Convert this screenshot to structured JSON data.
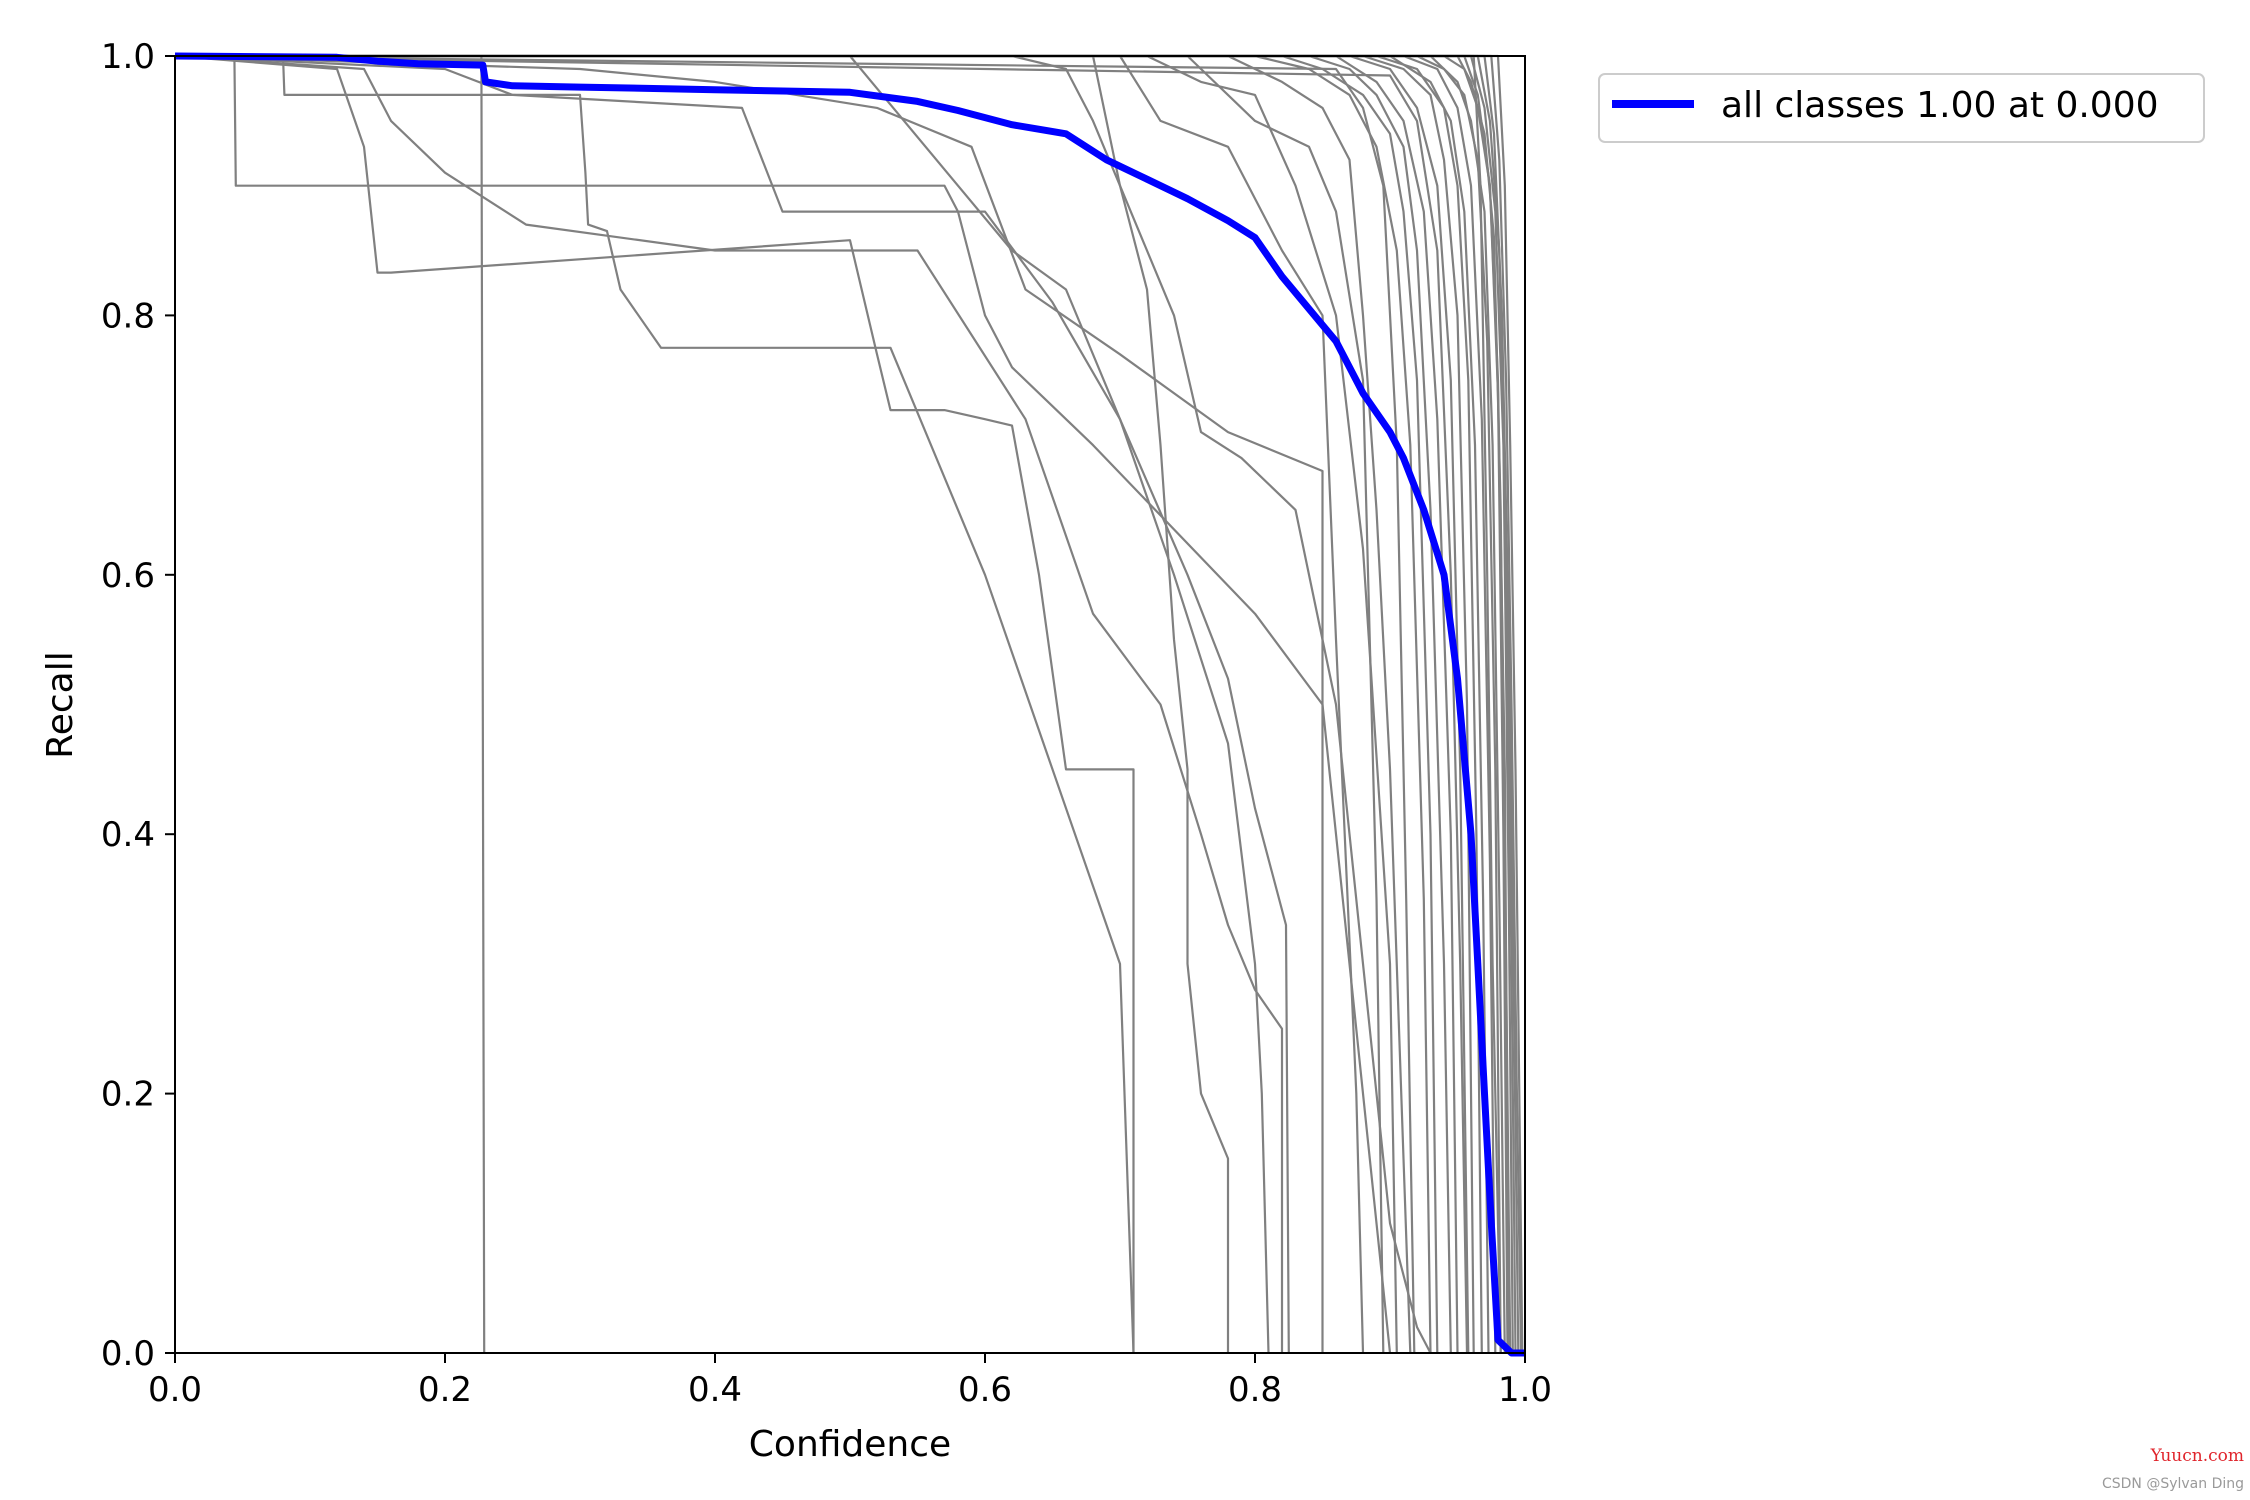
{
  "chart_data": {
    "type": "line",
    "title": "",
    "xlabel": "Confidence",
    "ylabel": "Recall",
    "xlim": [
      0,
      1
    ],
    "ylim": [
      0,
      1
    ],
    "xticks": [
      "0.0",
      "0.2",
      "0.4",
      "0.6",
      "0.8",
      "1.0"
    ],
    "yticks": [
      "0.0",
      "0.2",
      "0.4",
      "0.6",
      "0.8",
      "1.0"
    ],
    "grid": false,
    "legend": {
      "placement": "outside-top-right",
      "entries": [
        "all classes 1.00 at 0.000"
      ]
    },
    "colors": {
      "per_class": "#808080",
      "all_classes": "#0000ff"
    },
    "series": [
      {
        "name": "all classes 1.00 at 0.000",
        "highlight": true,
        "x": [
          0,
          0.12,
          0.15,
          0.18,
          0.228,
          0.23,
          0.25,
          0.3,
          0.4,
          0.45,
          0.5,
          0.55,
          0.58,
          0.62,
          0.66,
          0.69,
          0.72,
          0.75,
          0.78,
          0.8,
          0.82,
          0.84,
          0.86,
          0.88,
          0.9,
          0.91,
          0.925,
          0.94,
          0.95,
          0.96,
          0.965,
          0.97,
          0.975,
          0.98,
          0.99,
          1.0
        ],
        "y": [
          1.0,
          0.999,
          0.996,
          0.994,
          0.993,
          0.98,
          0.977,
          0.976,
          0.974,
          0.973,
          0.972,
          0.965,
          0.958,
          0.947,
          0.94,
          0.92,
          0.905,
          0.89,
          0.873,
          0.86,
          0.83,
          0.805,
          0.78,
          0.74,
          0.71,
          0.69,
          0.65,
          0.6,
          0.52,
          0.4,
          0.3,
          0.2,
          0.1,
          0.01,
          0.0,
          0.0
        ]
      },
      {
        "x": [
          0,
          0.044,
          0.045,
          0.57,
          0.58,
          0.6,
          0.62,
          0.68,
          0.8,
          0.85,
          0.9
        ],
        "y": [
          1.0,
          1.0,
          0.9,
          0.9,
          0.88,
          0.8,
          0.76,
          0.7,
          0.57,
          0.5,
          0.0
        ]
      },
      {
        "x": [
          0,
          0.227,
          0.228,
          0.229
        ],
        "y": [
          1.0,
          1.0,
          0.5,
          0.0
        ]
      },
      {
        "x": [
          0,
          0.08,
          0.081,
          0.3,
          0.304,
          0.306,
          0.32,
          0.33,
          0.36,
          0.53,
          0.6,
          0.7,
          0.71
        ],
        "y": [
          1.0,
          1.0,
          0.97,
          0.97,
          0.91,
          0.87,
          0.865,
          0.82,
          0.775,
          0.775,
          0.6,
          0.3,
          0.0
        ]
      },
      {
        "x": [
          0,
          0.12,
          0.14,
          0.15,
          0.16,
          0.5,
          0.52,
          0.53,
          0.57,
          0.6,
          0.62,
          0.64,
          0.66,
          0.71,
          0.71
        ],
        "y": [
          1.0,
          0.99,
          0.93,
          0.833,
          0.833,
          0.858,
          0.77,
          0.727,
          0.727,
          0.72,
          0.715,
          0.6,
          0.45,
          0.45,
          0.0
        ]
      },
      {
        "x": [
          0,
          0.14,
          0.16,
          0.2,
          0.26,
          0.4,
          0.55,
          0.63,
          0.68,
          0.73,
          0.76,
          0.78,
          0.8,
          0.82,
          0.82
        ],
        "y": [
          1.0,
          0.99,
          0.95,
          0.91,
          0.87,
          0.85,
          0.85,
          0.72,
          0.57,
          0.5,
          0.4,
          0.33,
          0.28,
          0.25,
          0.0
        ]
      },
      {
        "x": [
          0,
          0.2,
          0.25,
          0.42,
          0.45,
          0.6,
          0.65,
          0.7,
          0.75,
          0.78,
          0.8,
          0.823,
          0.825
        ],
        "y": [
          1.0,
          0.99,
          0.97,
          0.96,
          0.88,
          0.88,
          0.81,
          0.72,
          0.6,
          0.52,
          0.42,
          0.33,
          0.0
        ]
      },
      {
        "x": [
          0,
          0.3,
          0.4,
          0.52,
          0.59,
          0.63,
          0.7,
          0.78,
          0.85,
          0.85
        ],
        "y": [
          1.0,
          0.99,
          0.98,
          0.96,
          0.93,
          0.82,
          0.77,
          0.71,
          0.68,
          0.0
        ]
      },
      {
        "x": [
          0,
          0.5,
          0.58,
          0.62,
          0.66,
          0.7,
          0.74,
          0.78,
          0.8,
          0.805,
          0.81
        ],
        "y": [
          1.0,
          1.0,
          0.9,
          0.85,
          0.82,
          0.72,
          0.6,
          0.47,
          0.3,
          0.2,
          0.0
        ]
      },
      {
        "x": [
          0,
          0.62,
          0.66,
          0.68,
          0.7,
          0.74,
          0.76,
          0.79,
          0.83,
          0.86,
          0.88,
          0.9,
          0.92,
          0.93
        ],
        "y": [
          1.0,
          1.0,
          0.99,
          0.95,
          0.9,
          0.8,
          0.71,
          0.69,
          0.65,
          0.5,
          0.3,
          0.1,
          0.02,
          0.0
        ]
      },
      {
        "x": [
          0,
          0.68,
          0.7,
          0.72,
          0.73,
          0.74,
          0.75,
          0.75,
          0.76,
          0.78,
          0.78
        ],
        "y": [
          1.0,
          1.0,
          0.9,
          0.82,
          0.7,
          0.55,
          0.45,
          0.3,
          0.2,
          0.15,
          0.0
        ]
      },
      {
        "x": [
          0,
          0.7,
          0.73,
          0.78,
          0.82,
          0.85,
          0.86,
          0.875,
          0.88
        ],
        "y": [
          1.0,
          1.0,
          0.95,
          0.93,
          0.85,
          0.8,
          0.55,
          0.2,
          0.0
        ]
      },
      {
        "x": [
          0,
          0.72,
          0.76,
          0.8,
          0.83,
          0.86,
          0.88,
          0.9,
          0.905
        ],
        "y": [
          1.0,
          1.0,
          0.98,
          0.97,
          0.9,
          0.8,
          0.62,
          0.3,
          0.0
        ]
      },
      {
        "x": [
          0,
          0.75,
          0.8,
          0.84,
          0.86,
          0.88,
          0.89,
          0.895
        ],
        "y": [
          1.0,
          1.0,
          0.95,
          0.93,
          0.88,
          0.75,
          0.35,
          0.0
        ]
      },
      {
        "x": [
          0,
          0.78,
          0.82,
          0.85,
          0.87,
          0.88,
          0.89,
          0.9,
          0.91,
          0.915
        ],
        "y": [
          1.0,
          1.0,
          0.98,
          0.96,
          0.92,
          0.8,
          0.65,
          0.45,
          0.15,
          0.0
        ]
      },
      {
        "x": [
          0,
          0.8,
          0.84,
          0.87,
          0.89,
          0.905,
          0.915,
          0.925,
          0.93
        ],
        "y": [
          1.0,
          1.0,
          0.99,
          0.97,
          0.93,
          0.85,
          0.7,
          0.35,
          0.0
        ]
      },
      {
        "x": [
          0,
          0.82,
          0.85,
          0.88,
          0.9,
          0.91,
          0.92,
          0.93,
          0.935
        ],
        "y": [
          1.0,
          1.0,
          0.99,
          0.97,
          0.94,
          0.88,
          0.75,
          0.4,
          0.0
        ]
      },
      {
        "x": [
          0,
          0.84,
          0.87,
          0.89,
          0.91,
          0.92,
          0.93,
          0.94,
          0.945
        ],
        "y": [
          1.0,
          1.0,
          0.99,
          0.97,
          0.93,
          0.85,
          0.65,
          0.3,
          0.0
        ]
      },
      {
        "x": [
          0,
          0.86,
          0.89,
          0.91,
          0.925,
          0.935,
          0.945,
          0.95
        ],
        "y": [
          1.0,
          1.0,
          0.98,
          0.95,
          0.88,
          0.72,
          0.4,
          0.0
        ]
      },
      {
        "x": [
          0,
          0.87,
          0.9,
          0.92,
          0.935,
          0.945,
          0.952,
          0.958
        ],
        "y": [
          1.0,
          1.0,
          0.99,
          0.96,
          0.9,
          0.75,
          0.45,
          0.0
        ]
      },
      {
        "x": [
          0,
          0.88,
          0.91,
          0.93,
          0.94,
          0.95,
          0.957,
          0.962
        ],
        "y": [
          1.0,
          1.0,
          0.99,
          0.97,
          0.92,
          0.8,
          0.5,
          0.0
        ]
      },
      {
        "x": [
          0,
          0.89,
          0.92,
          0.94,
          0.95,
          0.958,
          0.964,
          0.968
        ],
        "y": [
          1.0,
          1.0,
          0.99,
          0.96,
          0.9,
          0.75,
          0.4,
          0.0
        ]
      },
      {
        "x": [
          0,
          0.9,
          0.93,
          0.945,
          0.955,
          0.963,
          0.969,
          0.973
        ],
        "y": [
          1.0,
          1.0,
          0.98,
          0.95,
          0.88,
          0.7,
          0.35,
          0.0
        ]
      },
      {
        "x": [
          0,
          0.91,
          0.935,
          0.95,
          0.96,
          0.968,
          0.974,
          0.978
        ],
        "y": [
          1.0,
          1.0,
          0.99,
          0.96,
          0.9,
          0.72,
          0.38,
          0.0
        ]
      },
      {
        "x": [
          0,
          0.92,
          0.94,
          0.955,
          0.965,
          0.972,
          0.978,
          0.982
        ],
        "y": [
          1.0,
          1.0,
          0.99,
          0.97,
          0.92,
          0.78,
          0.45,
          0.0
        ]
      },
      {
        "x": [
          0,
          0.93,
          0.95,
          0.96,
          0.97,
          0.976,
          0.981,
          0.985
        ],
        "y": [
          1.0,
          1.0,
          0.98,
          0.95,
          0.88,
          0.7,
          0.35,
          0.0
        ]
      },
      {
        "x": [
          0,
          0.94,
          0.955,
          0.965,
          0.974,
          0.98,
          0.984,
          0.987
        ],
        "y": [
          1.0,
          1.0,
          0.99,
          0.96,
          0.9,
          0.74,
          0.4,
          0.0
        ]
      },
      {
        "x": [
          0,
          0.95,
          0.96,
          0.97,
          0.977,
          0.982,
          0.986,
          0.989
        ],
        "y": [
          1.0,
          1.0,
          0.98,
          0.94,
          0.86,
          0.65,
          0.3,
          0.0
        ]
      },
      {
        "x": [
          0,
          0.955,
          0.965,
          0.974,
          0.98,
          0.985,
          0.988
        ],
        "y": [
          1.0,
          1.0,
          0.97,
          0.9,
          0.75,
          0.45,
          0.0
        ]
      },
      {
        "x": [
          0,
          0.96,
          0.97,
          0.978,
          0.984,
          0.988,
          0.991
        ],
        "y": [
          1.0,
          1.0,
          0.96,
          0.88,
          0.7,
          0.35,
          0.0
        ]
      },
      {
        "x": [
          0,
          0.965,
          0.974,
          0.981,
          0.986,
          0.99,
          0.993
        ],
        "y": [
          1.0,
          1.0,
          0.95,
          0.85,
          0.62,
          0.3,
          0.0
        ]
      },
      {
        "x": [
          0,
          0.97,
          0.977,
          0.983,
          0.988,
          0.992,
          0.995
        ],
        "y": [
          1.0,
          1.0,
          0.94,
          0.8,
          0.55,
          0.25,
          0.0
        ]
      },
      {
        "x": [
          0,
          0.975,
          0.981,
          0.986,
          0.99,
          0.994,
          0.997
        ],
        "y": [
          1.0,
          1.0,
          0.92,
          0.75,
          0.5,
          0.2,
          0.0
        ]
      },
      {
        "x": [
          0,
          0.98,
          0.985,
          0.989,
          0.993,
          0.996,
          0.998
        ],
        "y": [
          1.0,
          1.0,
          0.9,
          0.7,
          0.45,
          0.18,
          0.0
        ]
      },
      {
        "x": [
          0,
          0.962,
          0.967,
          0.972,
          0.976,
          0.98,
          0.982
        ],
        "y": [
          1.0,
          1.0,
          0.9,
          0.6,
          0.3,
          0.1,
          0.0
        ]
      },
      {
        "x": [
          0,
          0.9,
          0.92,
          0.935,
          0.945,
          0.952,
          0.957
        ],
        "y": [
          1.0,
          0.985,
          0.95,
          0.85,
          0.6,
          0.3,
          0.0
        ]
      },
      {
        "x": [
          0,
          0.86,
          0.88,
          0.895,
          0.905,
          0.912,
          0.918
        ],
        "y": [
          1.0,
          0.99,
          0.96,
          0.9,
          0.7,
          0.35,
          0.0
        ]
      }
    ]
  },
  "watermark": {
    "site": "Yuucn.com",
    "author": "CSDN @Sylvan Ding"
  }
}
